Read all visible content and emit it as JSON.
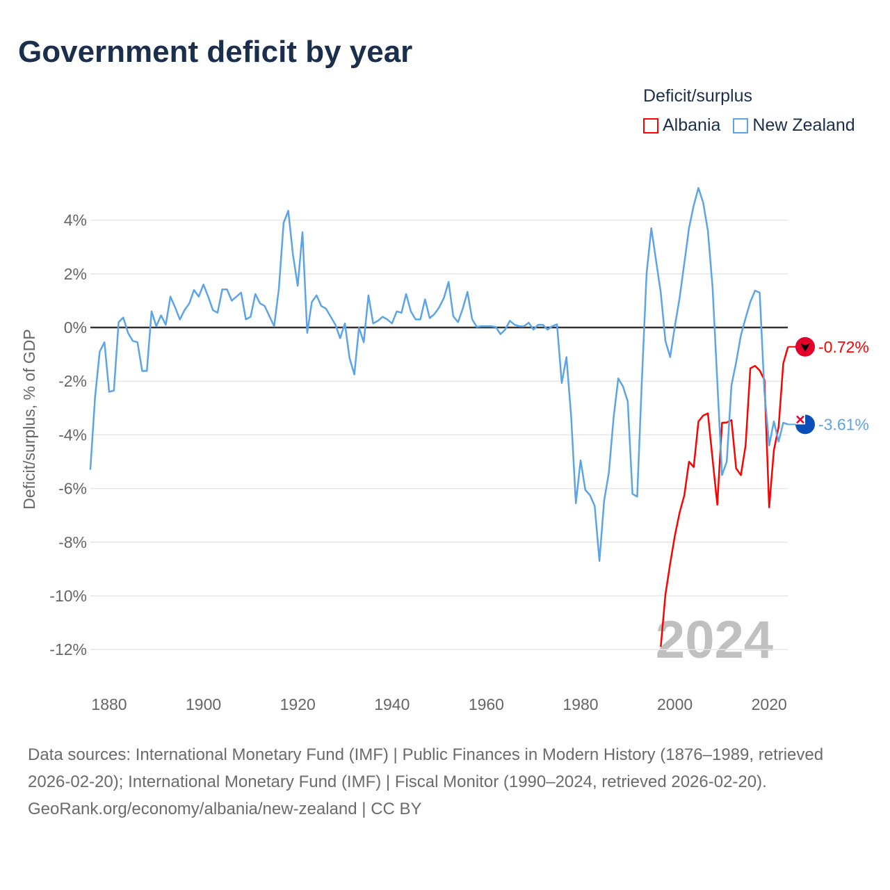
{
  "title": "Government deficit by year",
  "legend": {
    "title": "Deficit/surplus",
    "items": [
      {
        "label": "Albania",
        "color": "#ff0000"
      },
      {
        "label": "New Zealand",
        "color": "#5ba4e8"
      }
    ]
  },
  "footer": {
    "sources": "Data sources: International Monetary Fund (IMF) | Public Finances in Modern History (1876–1989, retrieved 2026-02-20); International Monetary Fund (IMF) | Fiscal Monitor (1990–2024, retrieved 2026-02-20).",
    "credit": "GeoRank.org/economy/albania/new-zealand | CC BY"
  },
  "chart_data": {
    "type": "line",
    "title": "Government deficit by year",
    "ylabel": "Deficit/surplus, % of GDP",
    "xlabel": "",
    "year_watermark": "2024",
    "xlim": [
      1876,
      2024
    ],
    "ylim": [
      -13,
      5.5
    ],
    "xticks": [
      {
        "v": 1880,
        "label": "1880"
      },
      {
        "v": 1900,
        "label": "1900"
      },
      {
        "v": 1920,
        "label": "1920"
      },
      {
        "v": 1940,
        "label": "1940"
      },
      {
        "v": 1960,
        "label": "1960"
      },
      {
        "v": 1980,
        "label": "1980"
      },
      {
        "v": 2000,
        "label": "2000"
      },
      {
        "v": 2020,
        "label": "2020"
      }
    ],
    "yticks": [
      {
        "v": 4,
        "label": "4%"
      },
      {
        "v": 2,
        "label": "2%"
      },
      {
        "v": 0,
        "label": "0%"
      },
      {
        "v": -2,
        "label": "-2%"
      },
      {
        "v": -4,
        "label": "-4%"
      },
      {
        "v": -6,
        "label": "-6%"
      },
      {
        "v": -8,
        "label": "-8%"
      },
      {
        "v": -10,
        "label": "-10%"
      },
      {
        "v": -12,
        "label": "-12%"
      }
    ],
    "grid": true,
    "legend_position": "top-right",
    "series": [
      {
        "name": "Albania",
        "color": "#ff0000",
        "end_label": "-0.72%",
        "start": 1997,
        "values": [
          -11.9,
          -9.95,
          -8.8,
          -7.75,
          -6.9,
          -6.25,
          -5.0,
          -5.2,
          -3.5,
          -3.28,
          -3.2,
          -4.9,
          -6.6,
          -3.55,
          -3.54,
          -3.45,
          -5.25,
          -5.5,
          -4.4,
          -1.52,
          -1.43,
          -1.6,
          -1.95,
          -6.7,
          -4.57,
          -3.7,
          -1.34,
          -0.72
        ]
      },
      {
        "name": "New Zealand",
        "color": "#5ba4e8",
        "end_label": "-3.61%",
        "start": 1876,
        "values": [
          -5.3,
          -2.6,
          -0.9,
          -0.55,
          -2.4,
          -2.35,
          0.2,
          0.37,
          -0.2,
          -0.5,
          -0.55,
          -1.62,
          -1.62,
          0.6,
          0.05,
          0.45,
          0.1,
          1.15,
          0.75,
          0.3,
          0.65,
          0.9,
          1.4,
          1.15,
          1.6,
          1.15,
          0.65,
          0.55,
          1.42,
          1.42,
          1.0,
          1.15,
          1.3,
          0.3,
          0.4,
          1.25,
          0.9,
          0.8,
          0.42,
          0.05,
          1.45,
          3.9,
          4.35,
          2.7,
          1.55,
          3.55,
          -0.2,
          0.95,
          1.2,
          0.8,
          0.7,
          0.4,
          0.1,
          -0.4,
          0.15,
          -1.15,
          -1.75,
          0,
          -0.55,
          1.2,
          0.15,
          0.25,
          0.4,
          0.3,
          0.15,
          0.6,
          0.55,
          1.25,
          0.6,
          0.3,
          0.3,
          1.05,
          0.35,
          0.5,
          0.75,
          1.1,
          1.7,
          0.42,
          0.2,
          0.7,
          1.33,
          0.3,
          0.02,
          0.05,
          0.05,
          0.05,
          0.02,
          -0.25,
          -0.08,
          0.25,
          0.1,
          0.05,
          0.05,
          0.18,
          -0.08,
          0.1,
          0.1,
          -0.08,
          0.05,
          0.12,
          -2.07,
          -1.1,
          -3.3,
          -6.55,
          -4.95,
          -6.05,
          -6.25,
          -6.65,
          -8.7,
          -6.45,
          -5.4,
          -3.35,
          -1.9,
          -2.2,
          -2.75,
          -6.2,
          -6.3,
          -2.0,
          2.0,
          3.7,
          2.5,
          1.3,
          -0.5,
          -1.1,
          0.05,
          1.1,
          2.4,
          3.7,
          4.55,
          5.2,
          4.65,
          3.6,
          1.5,
          -2.0,
          -5.5,
          -5.0,
          -2.15,
          -1.3,
          -0.3,
          0.35,
          0.95,
          1.37,
          1.3,
          -2.4,
          -4.4,
          -3.5,
          -4.25,
          -3.55,
          -3.61
        ]
      }
    ]
  }
}
